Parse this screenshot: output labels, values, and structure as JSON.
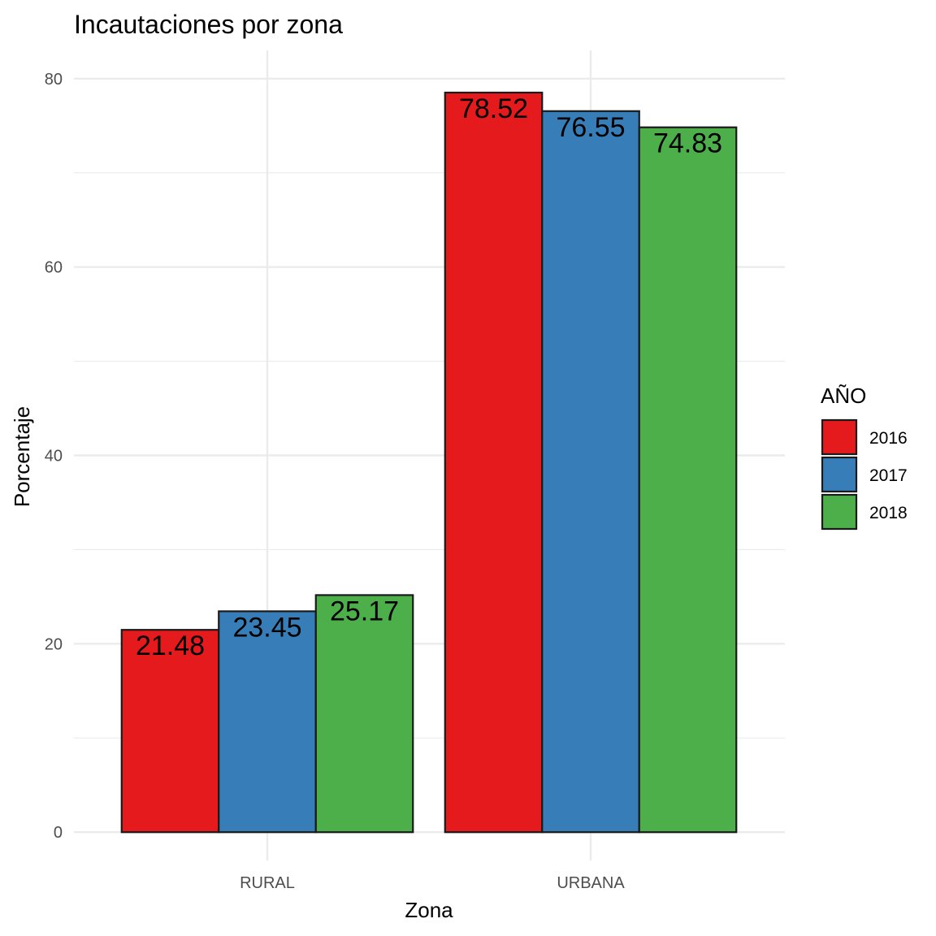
{
  "chart_data": {
    "type": "bar",
    "title": "Incautaciones por zona",
    "xlabel": "Zona",
    "ylabel": "Porcentaje",
    "categories": [
      "RURAL",
      "URBANA"
    ],
    "series": [
      {
        "name": "2016",
        "color": "#e41a1c",
        "values": [
          21.48,
          78.52
        ]
      },
      {
        "name": "2017",
        "color": "#377eb8",
        "values": [
          23.45,
          76.55
        ]
      },
      {
        "name": "2018",
        "color": "#4daf4a",
        "values": [
          25.17,
          74.83
        ]
      }
    ],
    "data_labels": [
      [
        "21.48",
        "78.52"
      ],
      [
        "23.45",
        "76.55"
      ],
      [
        "25.17",
        "74.83"
      ]
    ],
    "ylim": [
      -3,
      83
    ],
    "yticks": [
      0,
      20,
      40,
      60,
      80
    ],
    "ytick_labels": [
      "0",
      "20",
      "40",
      "60",
      "80"
    ],
    "grid": true,
    "legend_title": "AÑO",
    "legend_position": "right"
  }
}
